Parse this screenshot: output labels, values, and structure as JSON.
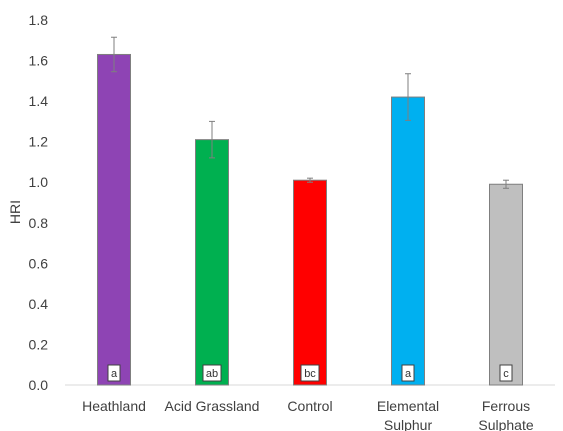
{
  "chart_data": {
    "type": "bar",
    "ylabel": "HRI",
    "xlabel": "",
    "ylim": [
      0,
      1.8
    ],
    "yticks": [
      "0.0",
      "0.2",
      "0.4",
      "0.6",
      "0.8",
      "1.0",
      "1.2",
      "1.4",
      "1.6",
      "1.8"
    ],
    "grid": false,
    "categories": [
      [
        "Heathland"
      ],
      [
        "Acid Grassland"
      ],
      [
        "Control"
      ],
      [
        "Elemental",
        "Sulphur"
      ],
      [
        "Ferrous",
        "Sulphate"
      ]
    ],
    "values": [
      1.63,
      1.21,
      1.01,
      1.42,
      0.99
    ],
    "errors": [
      0.085,
      0.09,
      0.01,
      0.115,
      0.02
    ],
    "significance_letters": [
      "a",
      "ab",
      "bc",
      "a",
      "c"
    ],
    "colors": [
      "#8e44b4",
      "#00b050",
      "#ff0000",
      "#00b0f0",
      "#bfbfbf"
    ]
  }
}
